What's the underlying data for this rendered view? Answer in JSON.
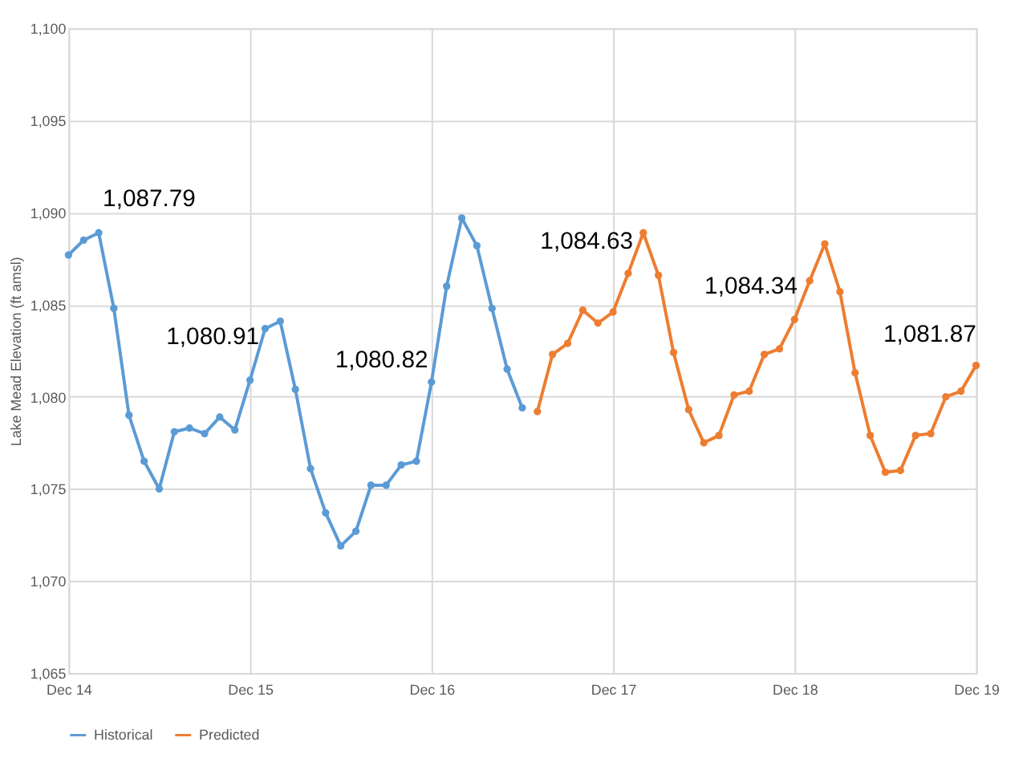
{
  "chart_data": {
    "type": "line",
    "ylabel": "Lake Mead Elevation (ft amsl)",
    "categories": [
      "Dec 14",
      null,
      null,
      null,
      null,
      null,
      null,
      null,
      null,
      null,
      null,
      null,
      "Dec 15",
      null,
      null,
      null,
      null,
      null,
      null,
      null,
      null,
      null,
      null,
      null,
      "Dec 16",
      null,
      null,
      null,
      null,
      null,
      null,
      null,
      null,
      null,
      null,
      null,
      "Dec 17",
      null,
      null,
      null,
      null,
      null,
      null,
      null,
      null,
      null,
      null,
      null,
      "Dec 18",
      null,
      null,
      null,
      null,
      null,
      null,
      null,
      null,
      null,
      null,
      null,
      "Dec 19"
    ],
    "series": [
      {
        "name": "Historical",
        "color": "#5b9bd5",
        "values": [
          1087.7,
          1088.5,
          1088.9,
          1084.8,
          1079.0,
          1076.5,
          1075.0,
          1078.1,
          1078.3,
          1078.0,
          1078.9,
          1078.2,
          1080.9,
          1083.7,
          1084.1,
          1080.4,
          1076.1,
          1073.7,
          1071.9,
          1072.7,
          1075.2,
          1075.2,
          1076.3,
          1076.5,
          1080.8,
          1086.0,
          1089.7,
          1088.2,
          1084.8,
          1081.5,
          1079.4,
          null,
          null,
          null,
          null,
          null,
          null,
          null,
          null,
          null,
          null,
          null,
          null,
          null,
          null,
          null,
          null,
          null,
          null,
          null,
          null,
          null,
          null,
          null,
          null,
          null,
          null,
          null,
          null,
          null,
          null
        ]
      },
      {
        "name": "Predicted",
        "color": "#ed7d31",
        "values": [
          null,
          null,
          null,
          null,
          null,
          null,
          null,
          null,
          null,
          null,
          null,
          null,
          null,
          null,
          null,
          null,
          null,
          null,
          null,
          null,
          null,
          null,
          null,
          null,
          null,
          null,
          null,
          null,
          null,
          null,
          null,
          1079.2,
          1082.3,
          1082.9,
          1084.7,
          1084.0,
          1084.6,
          1086.7,
          1088.9,
          1086.6,
          1082.4,
          1079.3,
          1077.5,
          1077.9,
          1080.1,
          1080.3,
          1082.3,
          1082.6,
          1084.2,
          1086.3,
          1088.3,
          1085.7,
          1081.3,
          1077.9,
          1075.9,
          1076.0,
          1077.9,
          1078.0,
          1080.0,
          1080.3,
          1081.7
        ]
      }
    ],
    "ylim": [
      1065,
      1100
    ],
    "yticks": [
      {
        "value": 1065,
        "label": "1,065"
      },
      {
        "value": 1070,
        "label": "1,070"
      },
      {
        "value": 1075,
        "label": "1,075"
      },
      {
        "value": 1080,
        "label": "1,080"
      },
      {
        "value": 1085,
        "label": "1,085"
      },
      {
        "value": 1090,
        "label": "1,090"
      },
      {
        "value": 1095,
        "label": "1,095"
      },
      {
        "value": 1100,
        "label": "1,100"
      }
    ],
    "annotations": [
      "1,087.79",
      "1,080.91",
      "1,080.82",
      "1,084.63",
      "1,084.34",
      "1,081.87"
    ],
    "grid": true,
    "legend": "bottom",
    "marker": "circle",
    "line_style": "solid"
  }
}
